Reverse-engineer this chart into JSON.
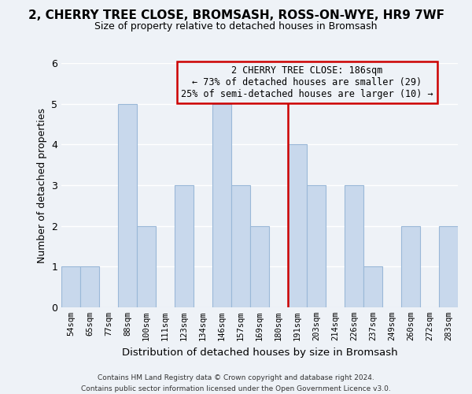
{
  "title": "2, CHERRY TREE CLOSE, BROMSASH, ROSS-ON-WYE, HR9 7WF",
  "subtitle": "Size of property relative to detached houses in Bromsash",
  "xlabel": "Distribution of detached houses by size in Bromsash",
  "ylabel": "Number of detached properties",
  "bin_labels": [
    "54sqm",
    "65sqm",
    "77sqm",
    "88sqm",
    "100sqm",
    "111sqm",
    "123sqm",
    "134sqm",
    "146sqm",
    "157sqm",
    "169sqm",
    "180sqm",
    "191sqm",
    "203sqm",
    "214sqm",
    "226sqm",
    "237sqm",
    "249sqm",
    "260sqm",
    "272sqm",
    "283sqm"
  ],
  "bar_heights": [
    1,
    1,
    0,
    5,
    2,
    0,
    3,
    0,
    5,
    3,
    2,
    0,
    4,
    3,
    0,
    3,
    1,
    0,
    2,
    0,
    2
  ],
  "bar_color": "#c8d8ec",
  "bar_edge_color": "#9ab8d8",
  "vline_x_index": 11.5,
  "vline_color": "#cc0000",
  "ylim": [
    0,
    6
  ],
  "yticks": [
    0,
    1,
    2,
    3,
    4,
    5,
    6
  ],
  "annotation_title": "2 CHERRY TREE CLOSE: 186sqm",
  "annotation_line1": "← 73% of detached houses are smaller (29)",
  "annotation_line2": "25% of semi-detached houses are larger (10) →",
  "annotation_box_edge": "#cc0000",
  "footer_line1": "Contains HM Land Registry data © Crown copyright and database right 2024.",
  "footer_line2": "Contains public sector information licensed under the Open Government Licence v3.0.",
  "background_color": "#eef2f7",
  "grid_color": "#ffffff"
}
